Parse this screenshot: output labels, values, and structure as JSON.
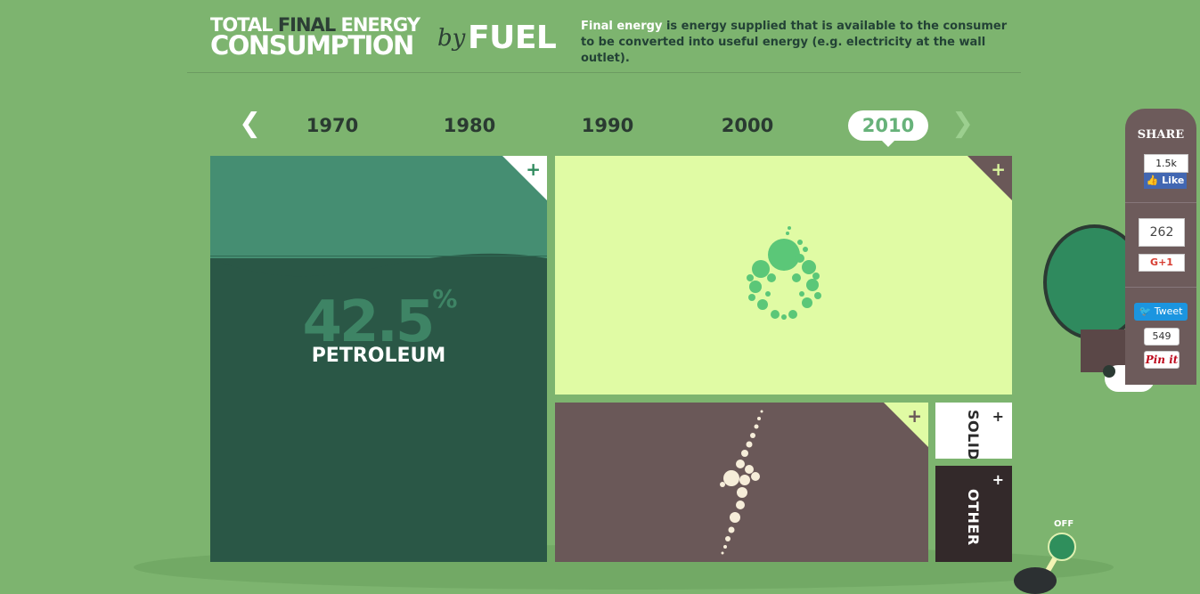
{
  "header": {
    "title_line1_a": "TOTAL ",
    "title_line1_b": "FINAL",
    "title_line1_c": " ENERGY",
    "title_line2": "CONSUMPTION",
    "title_by": "by",
    "title_fuel": "FUEL",
    "desc_highlight": "Final energy",
    "desc_rest": " is energy supplied that is available to the consumer to be converted into useful energy (e.g. electricity at the wall outlet)."
  },
  "timeline": {
    "years": [
      "1970",
      "1980",
      "1990",
      "2000",
      "2010"
    ],
    "selected": "2010"
  },
  "tiles": {
    "petroleum": {
      "percent": "42.5",
      "percent_sign": "%",
      "label": "PETROLEUM",
      "plus": "+"
    },
    "gas": {
      "plus": "+"
    },
    "electricity": {
      "plus": "+"
    },
    "solid": {
      "label": "SOLID",
      "plus": "+"
    },
    "other": {
      "label": "OTHER",
      "plus": "+"
    }
  },
  "share": {
    "title": "SHARE",
    "fb_count": "1.5k",
    "fb_like": "Like",
    "gplus_count": "262",
    "gplus_label": "G+1",
    "tweet_label": "Tweet",
    "pin_count": "549",
    "pin_label": "Pin it"
  },
  "toggle": {
    "label": "OFF"
  },
  "colors": {
    "background": "#7db46f",
    "petroleum": "#2a5746",
    "gas": "#e0fba4",
    "electricity": "#6a5858",
    "accent": "#67b27a"
  }
}
